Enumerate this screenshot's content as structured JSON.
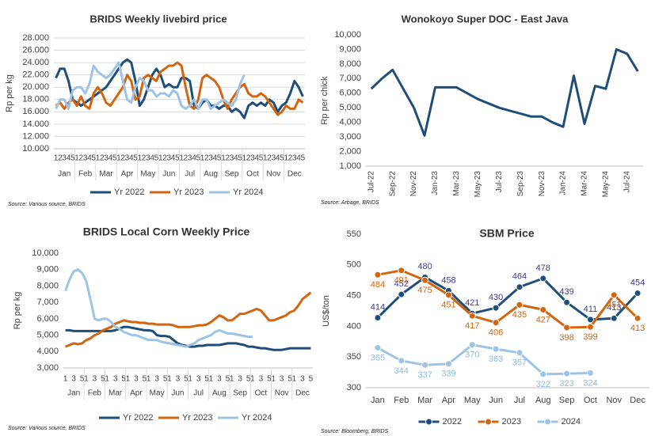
{
  "chart_data": [
    {
      "type": "line",
      "title": "BRIDS Weekly livebird price",
      "y_label": "Rp per kg",
      "source": "Source: Various source, BRIDS",
      "categories": [
        "1",
        "2",
        "3",
        "4",
        "5",
        "1",
        "2",
        "3",
        "4",
        "5",
        "1",
        "2",
        "3",
        "4",
        "5",
        "1",
        "2",
        "3",
        "4",
        "5",
        "1",
        "2",
        "3",
        "4",
        "5",
        "1",
        "2",
        "3",
        "4",
        "5",
        "1",
        "2",
        "3",
        "4",
        "5",
        "1",
        "2",
        "3",
        "4",
        "5",
        "1",
        "2",
        "3",
        "4",
        "5",
        "1",
        "2",
        "3",
        "4",
        "5",
        "1",
        "2",
        "3",
        "4",
        "5",
        "1",
        "2",
        "3",
        "4",
        "5"
      ],
      "months": [
        "Jan",
        "Feb",
        "Mar",
        "Apr",
        "May",
        "Jun",
        "Jul",
        "Aug",
        "Sep",
        "Oct",
        "Nov",
        "Dec"
      ],
      "ylim": [
        10000,
        28000
      ],
      "yticks": [
        {
          "value": 10000,
          "label": "10.000"
        },
        {
          "value": 12000,
          "label": "12.000"
        },
        {
          "value": 14000,
          "label": "14.000"
        },
        {
          "value": 16000,
          "label": "16.000"
        },
        {
          "value": 18000,
          "label": "18.000"
        },
        {
          "value": 20000,
          "label": "20.000"
        },
        {
          "value": 22000,
          "label": "22.000"
        },
        {
          "value": 24000,
          "label": "24.000"
        },
        {
          "value": 26000,
          "label": "26.000"
        },
        {
          "value": 28000,
          "label": "28.000"
        }
      ],
      "grid": true,
      "series": [
        {
          "name": "Yr 2022",
          "color": "#1f4e79",
          "values": [
            21500,
            23000,
            23000,
            21000,
            18000,
            17500,
            17000,
            17500,
            18000,
            18500,
            19000,
            19500,
            20000,
            21000,
            22000,
            23000,
            24000,
            24500,
            24000,
            21000,
            17000,
            18000,
            20000,
            22000,
            23000,
            22000,
            20000,
            20500,
            20000,
            20000,
            21500,
            21500,
            21000,
            17000,
            16500,
            17500,
            18000,
            17000,
            17000,
            16500,
            17000,
            17000,
            16000,
            16500,
            16000,
            15000,
            17000,
            17500,
            17000,
            17500,
            17000,
            18000,
            17500,
            16000,
            17000,
            17500,
            19000,
            21000,
            20000,
            18500
          ]
        },
        {
          "name": "Yr 2023",
          "color": "#d4650f",
          "values": [
            17000,
            17500,
            16500,
            17500,
            18000,
            17000,
            18500,
            17000,
            16500,
            19000,
            20000,
            19000,
            17500,
            17000,
            18000,
            19000,
            20000,
            22000,
            21000,
            18000,
            18500,
            21500,
            22000,
            21500,
            21000,
            22500,
            23000,
            23500,
            23500,
            24000,
            23500,
            20000,
            17000,
            16500,
            18000,
            21500,
            22000,
            21500,
            21000,
            20000,
            18000,
            16500,
            18000,
            19000,
            20000,
            20500,
            19000,
            18500,
            18500,
            19000,
            18500,
            17500,
            16500,
            15500,
            16000,
            17000,
            16500,
            16500,
            18000,
            17500
          ]
        },
        {
          "name": "Yr 2024",
          "color": "#9dc3e6",
          "values": [
            16500,
            18000,
            18000,
            16500,
            19500,
            20000,
            20000,
            19000,
            20500,
            23500,
            22500,
            22000,
            21500,
            22000,
            23000,
            24000,
            21000,
            18000,
            17500,
            20000,
            21500,
            21000,
            19500,
            19500,
            18500,
            19000,
            19000,
            18500,
            19500,
            19000,
            17000,
            16500,
            17000,
            18000,
            16500,
            18000,
            18000,
            16500,
            17000,
            17500,
            18000,
            17500,
            17000,
            18000,
            20500,
            22000,
            null,
            null,
            null,
            null,
            null,
            null,
            null,
            null,
            null,
            null,
            null,
            null,
            null,
            null
          ]
        }
      ]
    },
    {
      "type": "line",
      "title": "Wonokoyo Super DOC - East Java",
      "y_label": "Rp per chick",
      "source": "Source: Arbage, BRIDS",
      "categories": [
        "Jul-22",
        null,
        "Sep-22",
        null,
        "Nov-22",
        null,
        "Jan-23",
        null,
        "Mar-23",
        null,
        "May-23",
        null,
        "Jul-23",
        null,
        "Sep-23",
        null,
        "Nov-23",
        null,
        "Jan-24",
        null,
        "Mar-24",
        null,
        "May-24",
        null,
        "Jul-24",
        null
      ],
      "ylim": [
        1000,
        10000
      ],
      "yticks": [
        {
          "value": 1000,
          "label": "1,000"
        },
        {
          "value": 2000,
          "label": "2,000"
        },
        {
          "value": 3000,
          "label": "3,000"
        },
        {
          "value": 4000,
          "label": "4,000"
        },
        {
          "value": 5000,
          "label": "5,000"
        },
        {
          "value": 6000,
          "label": "6,000"
        },
        {
          "value": 7000,
          "label": "7,000"
        },
        {
          "value": 8000,
          "label": "8,000"
        },
        {
          "value": 9000,
          "label": "9,000"
        },
        {
          "value": 10000,
          "label": "10,000"
        }
      ],
      "grid": false,
      "series": [
        {
          "name": "Wonokoyo Super DOC",
          "color": "#1f4e79",
          "values": [
            6300,
            7000,
            7600,
            6300,
            5000,
            3100,
            6400,
            6400,
            6400,
            6000,
            5600,
            5300,
            5000,
            4800,
            4600,
            4400,
            4400,
            4000,
            3700,
            7200,
            3900,
            6500,
            6300,
            9000,
            8700,
            7500
          ]
        }
      ]
    },
    {
      "type": "line",
      "title": "BRIDS Local Corn Weekly Price",
      "y_label": "Rp per kg",
      "source": "Source: Various source, BRIDS",
      "categories": [
        "1",
        null,
        "3",
        null,
        "5",
        "1",
        null,
        "3",
        null,
        "5",
        "1",
        null,
        "3",
        null,
        "5",
        "1",
        null,
        "3",
        null,
        "5",
        "1",
        null,
        "3",
        null,
        "5",
        "1",
        null,
        "3",
        null,
        "5",
        "1",
        null,
        "3",
        null,
        "5",
        "1",
        null,
        "3",
        null,
        "5",
        "1",
        null,
        "3",
        null,
        "5",
        "1",
        null,
        "3",
        null,
        "5",
        "1",
        null,
        "3",
        null,
        "5",
        "1",
        null,
        "3",
        null,
        "5"
      ],
      "months": [
        "Jan",
        "Feb",
        "Mar",
        "Apr",
        "May",
        "Jun",
        "Jul",
        "Aug",
        "Sep",
        "Oct",
        "Nov",
        "Dec"
      ],
      "ylim": [
        3000,
        10000
      ],
      "yticks": [
        {
          "value": 3000,
          "label": "3,000"
        },
        {
          "value": 4000,
          "label": "4,000"
        },
        {
          "value": 5000,
          "label": "5,000"
        },
        {
          "value": 6000,
          "label": "6,000"
        },
        {
          "value": 7000,
          "label": "7,000"
        },
        {
          "value": 8000,
          "label": "8,000"
        },
        {
          "value": 9000,
          "label": "9,000"
        },
        {
          "value": 10000,
          "label": "10,000"
        }
      ],
      "grid": false,
      "series": [
        {
          "name": "Yr 2022",
          "color": "#1f4e79",
          "values": [
            5300,
            5300,
            5250,
            5250,
            5250,
            5250,
            5250,
            5250,
            5250,
            5250,
            5250,
            5250,
            5300,
            5400,
            5500,
            5500,
            5450,
            5400,
            5350,
            5300,
            5300,
            5250,
            5000,
            4950,
            4950,
            4900,
            4700,
            4500,
            4400,
            4350,
            4300,
            4300,
            4350,
            4350,
            4400,
            4400,
            4400,
            4400,
            4450,
            4500,
            4500,
            4500,
            4450,
            4400,
            4300,
            4300,
            4250,
            4200,
            4200,
            4150,
            4100,
            4100,
            4100,
            4150,
            4200,
            4200,
            4200,
            4200,
            4200,
            4200
          ]
        },
        {
          "name": "Yr 2023",
          "color": "#d4650f",
          "values": [
            4300,
            4400,
            4500,
            4450,
            4500,
            4700,
            4800,
            5000,
            5100,
            5300,
            5400,
            5500,
            5700,
            5800,
            5900,
            5850,
            5800,
            5800,
            5750,
            5750,
            5700,
            5700,
            5650,
            5650,
            5650,
            5650,
            5600,
            5500,
            5500,
            5500,
            5500,
            5550,
            5600,
            5600,
            5650,
            5800,
            6000,
            6200,
            6100,
            5900,
            5900,
            6100,
            6300,
            6300,
            6400,
            6500,
            6600,
            6500,
            6200,
            5900,
            5900,
            6000,
            6100,
            6200,
            6400,
            6500,
            6800,
            7200,
            7400,
            7600
          ]
        },
        {
          "name": "Yr 2024",
          "color": "#9dc3e6",
          "values": [
            7700,
            8400,
            8900,
            9000,
            8800,
            8300,
            7200,
            6000,
            5900,
            6000,
            6000,
            5800,
            5500,
            5400,
            5200,
            5100,
            5000,
            5000,
            4900,
            4800,
            4700,
            4700,
            4700,
            4600,
            4550,
            4500,
            4450,
            4400,
            4350,
            4300,
            4400,
            4500,
            4700,
            4800,
            4900,
            5000,
            5200,
            5300,
            5200,
            5100,
            5100,
            5050,
            5000,
            4950,
            4900,
            4900,
            null,
            null,
            null,
            null,
            null,
            null,
            null,
            null,
            null,
            null,
            null,
            null,
            null,
            null
          ]
        }
      ]
    },
    {
      "type": "line",
      "title": "SBM Price",
      "y_label": "US$/ton",
      "source": "Source: Bloomberg, BRIDS",
      "categories": [
        "Jan",
        "Feb",
        "Mar",
        "Apr",
        "May",
        "Jun",
        "Jul",
        "Aug",
        "Sep",
        "Oct",
        "Nov",
        "Dec"
      ],
      "ylim": [
        300,
        550
      ],
      "yticks": [
        300,
        350,
        400,
        450,
        500,
        550
      ],
      "grid": false,
      "markers": true,
      "data_labels": true,
      "series": [
        {
          "name": "2022",
          "color": "#1f4e79",
          "label_color": "#3c3c96",
          "values": [
            414,
            452,
            480,
            458,
            421,
            430,
            464,
            478,
            439,
            411,
            413,
            454
          ]
        },
        {
          "name": "2023",
          "color": "#d4650f",
          "label_color": "#d4650f",
          "values": [
            484,
            491,
            475,
            451,
            417,
            406,
            435,
            427,
            398,
            399,
            451,
            413
          ]
        },
        {
          "name": "2024",
          "color": "#9dc3e6",
          "label_color": "#8fb8dd",
          "values": [
            365,
            344,
            337,
            339,
            370,
            363,
            357,
            322,
            323,
            324,
            null,
            null
          ]
        }
      ]
    }
  ]
}
